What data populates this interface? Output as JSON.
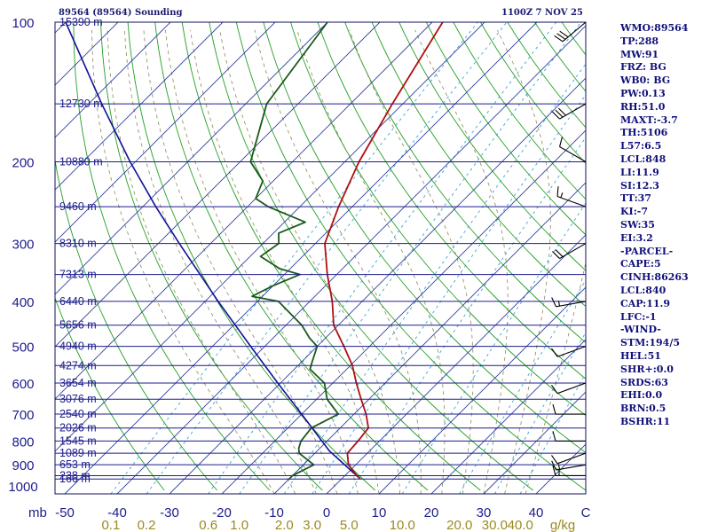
{
  "header": {
    "station": "89564 (89564) Sounding",
    "time": "1100Z  7 NOV 25"
  },
  "indices": [
    "WMO:89564",
    "TP:288",
    "MW:91",
    "FRZ: BG",
    "WB0: BG",
    "PW:0.13",
    "RH:51.0",
    "MAXT:-3.7",
    "TH:5106",
    "L57:6.5",
    "LCL:848",
    "LI:11.9",
    "SI:12.3",
    "TT:37",
    "KI:-7",
    "SW:35",
    "EI:3.2",
    "-PARCEL-",
    "CAPE:5",
    "CINH:86263",
    "LCL:840",
    "CAP:11.9",
    "LFC:-1",
    "-WIND-",
    "STM:194/5",
    "HEL:51",
    "SHR+:0.0",
    "SRDS:63",
    "EHI:0.0",
    "BRN:0.5",
    "BSHR:11"
  ],
  "colors": {
    "isobar": "#1c1c8c",
    "isotherm": "#2f3f9f",
    "dry_adiabat": "#22a022",
    "moist_adiabat": "#8a8a5a",
    "mixing_ratio": "#3aa3d8",
    "temperature": "#b01010",
    "dewpoint": "#1a5a1a",
    "parcel": "#10109a",
    "text": "#10107a",
    "mr_label": "#9a8a20"
  },
  "chart_data": {
    "type": "skew-t",
    "title": "89564 (89564) Sounding",
    "time": "1100Z  7 NOV 25",
    "ylabel": "mb",
    "xlabel": "C",
    "pressure_levels_mb": [
      100,
      200,
      300,
      400,
      500,
      600,
      700,
      800,
      900,
      1000
    ],
    "height_labels": [
      {
        "p": 100,
        "h": "15390 m"
      },
      {
        "p": 150,
        "h": "12730 m"
      },
      {
        "p": 200,
        "h": "10880 m"
      },
      {
        "p": 250,
        "h": "9460 m"
      },
      {
        "p": 300,
        "h": "8310 m"
      },
      {
        "p": 350,
        "h": "7313 m"
      },
      {
        "p": 400,
        "h": "6440 m"
      },
      {
        "p": 450,
        "h": "5656 m"
      },
      {
        "p": 500,
        "h": "4940 m"
      },
      {
        "p": 550,
        "h": "4274 m"
      },
      {
        "p": 600,
        "h": "3654 m"
      },
      {
        "p": 650,
        "h": "3076 m"
      },
      {
        "p": 700,
        "h": "2540 m"
      },
      {
        "p": 750,
        "h": "2026 m"
      },
      {
        "p": 800,
        "h": "1545 m"
      },
      {
        "p": 850,
        "h": "1089 m"
      },
      {
        "p": 900,
        "h": "653 m"
      },
      {
        "p": 950,
        "h": "238 m"
      },
      {
        "p": 966,
        "h": "166 m"
      }
    ],
    "temperature_ticks_c": [
      -50,
      -40,
      -30,
      -20,
      -10,
      0,
      10,
      20,
      30,
      40
    ],
    "mixing_ratio_labels_gkg": [
      {
        "value": "0.1",
        "t": -40
      },
      {
        "value": "0.2",
        "t": -34
      },
      {
        "value": "0.6",
        "t": -24
      },
      {
        "value": "1.0",
        "t": -19
      },
      {
        "value": "2.0",
        "t": -12
      },
      {
        "value": "3.0",
        "t": -7
      },
      {
        "value": "5.0",
        "t": 0
      },
      {
        "value": "10.0",
        "t": 9
      },
      {
        "value": "20.0",
        "t": 19
      },
      {
        "value": "30.0",
        "t": 27
      },
      {
        "value": "40.0",
        "t": 34
      }
    ],
    "mixing_ratio_unit": "g/kg",
    "temperature_profile": [
      {
        "p": 966,
        "t": 3.6
      },
      {
        "p": 950,
        "t": 2.3
      },
      {
        "p": 900,
        "t": -1.4
      },
      {
        "p": 850,
        "t": -3.8
      },
      {
        "p": 800,
        "t": -4.1
      },
      {
        "p": 750,
        "t": -4.6
      },
      {
        "p": 700,
        "t": -7.7
      },
      {
        "p": 650,
        "t": -11.5
      },
      {
        "p": 600,
        "t": -15.5
      },
      {
        "p": 550,
        "t": -19.6
      },
      {
        "p": 500,
        "t": -24.9
      },
      {
        "p": 450,
        "t": -30.9
      },
      {
        "p": 400,
        "t": -35.7
      },
      {
        "p": 350,
        "t": -41.8
      },
      {
        "p": 300,
        "t": -48.2
      },
      {
        "p": 250,
        "t": -52.6
      },
      {
        "p": 200,
        "t": -57.3
      },
      {
        "p": 150,
        "t": -62.0
      },
      {
        "p": 100,
        "t": -68.0
      }
    ],
    "dewpoint_profile": [
      {
        "p": 966,
        "t": -10.0
      },
      {
        "p": 950,
        "t": -10.0
      },
      {
        "p": 900,
        "t": -8.0
      },
      {
        "p": 850,
        "t": -13.0
      },
      {
        "p": 830,
        "t": -14.0
      },
      {
        "p": 800,
        "t": -15.0
      },
      {
        "p": 750,
        "t": -15.5
      },
      {
        "p": 700,
        "t": -13.0
      },
      {
        "p": 650,
        "t": -18.0
      },
      {
        "p": 600,
        "t": -21.6
      },
      {
        "p": 560,
        "t": -27.0
      },
      {
        "p": 540,
        "t": -28.0
      },
      {
        "p": 500,
        "t": -30.0
      },
      {
        "p": 480,
        "t": -33.0
      },
      {
        "p": 450,
        "t": -37.0
      },
      {
        "p": 400,
        "t": -46.0
      },
      {
        "p": 390,
        "t": -52.0
      },
      {
        "p": 370,
        "t": -50.0
      },
      {
        "p": 350,
        "t": -47.0
      },
      {
        "p": 340,
        "t": -52.0
      },
      {
        "p": 320,
        "t": -58.0
      },
      {
        "p": 300,
        "t": -57.0
      },
      {
        "p": 285,
        "t": -59.0
      },
      {
        "p": 270,
        "t": -56.0
      },
      {
        "p": 250,
        "t": -66.0
      },
      {
        "p": 240,
        "t": -70.0
      },
      {
        "p": 220,
        "t": -72.0
      },
      {
        "p": 200,
        "t": -78.0
      },
      {
        "p": 150,
        "t": -86.0
      },
      {
        "p": 100,
        "t": -90.0
      }
    ],
    "parcel_profile": [
      {
        "p": 966,
        "t": 3.6
      },
      {
        "p": 840,
        "t": -7.7
      },
      {
        "p": 700,
        "t": -20.0
      },
      {
        "p": 600,
        "t": -30.5
      },
      {
        "p": 500,
        "t": -42.7
      },
      {
        "p": 400,
        "t": -57.5
      },
      {
        "p": 300,
        "t": -76.0
      },
      {
        "p": 250,
        "t": -87.5
      },
      {
        "p": 200,
        "t": -101.0
      },
      {
        "p": 150,
        "t": -117.5
      },
      {
        "p": 100,
        "t": -140.0
      }
    ],
    "wind_barbs": [
      {
        "p": 950,
        "dir": 270,
        "spd": 15
      },
      {
        "p": 900,
        "dir": 260,
        "spd": 15
      },
      {
        "p": 850,
        "dir": 250,
        "spd": 10
      },
      {
        "p": 800,
        "dir": 270,
        "spd": 10
      },
      {
        "p": 700,
        "dir": 270,
        "spd": 10
      },
      {
        "p": 600,
        "dir": 250,
        "spd": 10
      },
      {
        "p": 500,
        "dir": 250,
        "spd": 10
      },
      {
        "p": 400,
        "dir": 260,
        "spd": 15
      },
      {
        "p": 300,
        "dir": 240,
        "spd": 20
      },
      {
        "p": 250,
        "dir": 290,
        "spd": 15
      },
      {
        "p": 200,
        "dir": 300,
        "spd": 10
      },
      {
        "p": 150,
        "dir": 240,
        "spd": 30
      },
      {
        "p": 100,
        "dir": 230,
        "spd": 30
      }
    ],
    "grid": true
  }
}
